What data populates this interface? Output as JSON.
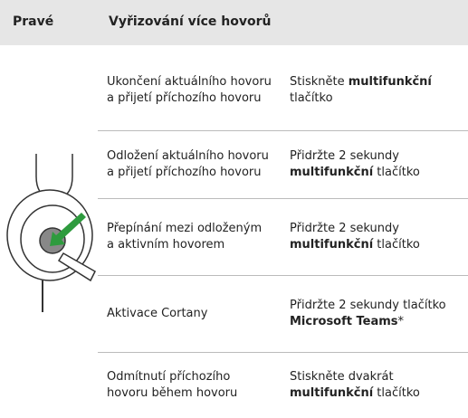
{
  "header": {
    "side": "Pravé",
    "title": "Vyřizování více hovorů"
  },
  "rows": [
    {
      "action": "Ukončení aktuálního hovoru a přijetí příchozího hovoru",
      "instruction": [
        {
          "text": "Stiskněte ",
          "bold": false
        },
        {
          "text": "multifunkční",
          "bold": true
        },
        {
          "text": " tlačítko",
          "bold": false
        }
      ]
    },
    {
      "action": "Odložení aktuálního hovoru a přijetí příchozího hovoru",
      "instruction": [
        {
          "text": "Přidržte 2 sekundy ",
          "bold": false
        },
        {
          "text": "multifunkční",
          "bold": true
        },
        {
          "text": " tlačítko",
          "bold": false
        }
      ]
    },
    {
      "action": "Přepínání mezi odloženým a aktivním hovorem",
      "instruction": [
        {
          "text": "Přidržte 2 sekundy ",
          "bold": false
        },
        {
          "text": "multifunkční",
          "bold": true
        },
        {
          "text": " tlačítko",
          "bold": false
        }
      ]
    },
    {
      "action": "Aktivace Cortany",
      "instruction": [
        {
          "text": "Přidržte 2 sekundy tlačítko ",
          "bold": false
        },
        {
          "text": "Microsoft Teams",
          "bold": true
        },
        {
          "text": "*",
          "bold": false
        }
      ]
    },
    {
      "action": "Odmítnutí příchozího hovoru během hovoru",
      "instruction": [
        {
          "text": "Stiskněte dvakrát ",
          "bold": false
        },
        {
          "text": "multifunkční",
          "bold": true
        },
        {
          "text": " tlačítko",
          "bold": false
        }
      ]
    }
  ]
}
